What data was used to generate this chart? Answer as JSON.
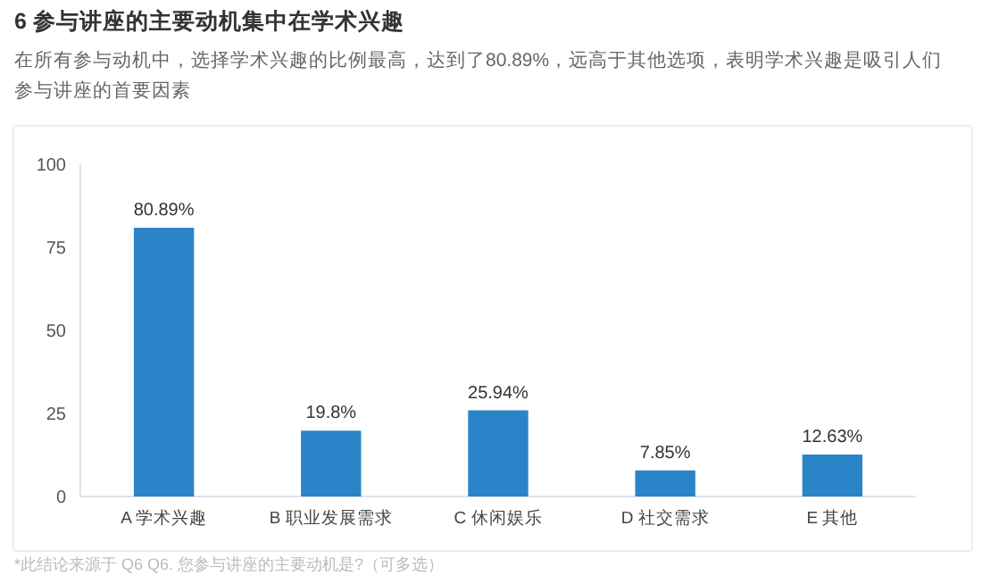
{
  "chart_data": {
    "type": "bar",
    "title": "6 参与讲座的主要动机集中在学术兴趣",
    "subtitle": "在所有参与动机中，选择学术兴趣的比例最高，达到了80.89%，远高于其他选项，表明学术兴趣是吸引人们参与讲座的首要因素",
    "categories": [
      "A 学术兴趣",
      "B 职业发展需求",
      "C 休闲娱乐",
      "D 社交需求",
      "E 其他"
    ],
    "values": [
      80.89,
      19.8,
      25.94,
      7.85,
      12.63
    ],
    "value_labels": [
      "80.89%",
      "19.8%",
      "25.94%",
      "7.85%",
      "12.63%"
    ],
    "color": "#2b84c8",
    "ylim": [
      0,
      100
    ],
    "yticks": [
      0,
      25,
      50,
      75,
      100
    ],
    "grid": false,
    "annotations": [
      "*此结论来源于 Q6 Q6. 您参与讲座的主要动机是?（可多选）"
    ]
  }
}
